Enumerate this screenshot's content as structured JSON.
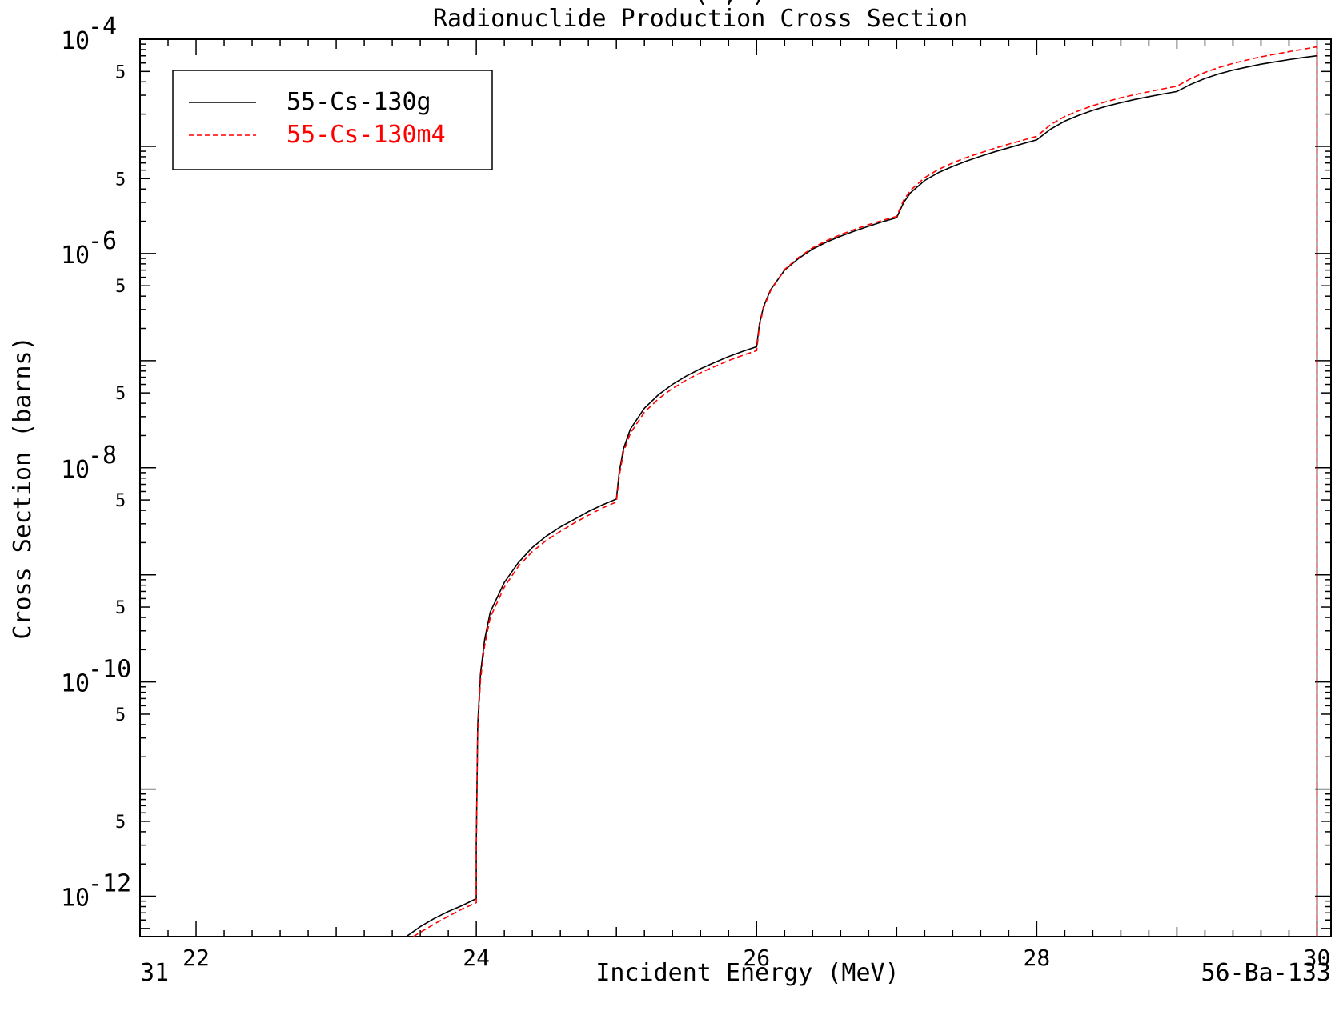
{
  "chart_data": {
    "type": "line",
    "title": "Radionuclide Production Cross Section",
    "title_top_fragment": "(   ,   )",
    "xlabel": "Incident Energy (MeV)",
    "ylabel": "Cross Section (barns)",
    "xlim": [
      21.6,
      30.1
    ],
    "ylim": [
      4.2e-13,
      0.0001
    ],
    "yscale": "log",
    "x_ticks": [
      {
        "value": 22,
        "label": "22"
      },
      {
        "value": 24,
        "label": "24"
      },
      {
        "value": 26,
        "label": "26"
      },
      {
        "value": 28,
        "label": "28"
      },
      {
        "value": 30,
        "label": "30"
      }
    ],
    "y_major_labels": [
      {
        "exp": -4,
        "base": "10",
        "sup": "-4"
      },
      {
        "exp": -6,
        "base": "10",
        "sup": "-6"
      },
      {
        "exp": -8,
        "base": "10",
        "sup": "-8"
      },
      {
        "exp": -10,
        "base": "10",
        "sup": "-10"
      },
      {
        "exp": -12,
        "base": "10",
        "sup": "-12"
      }
    ],
    "y_minor_labels": [
      {
        "value": 5e-05,
        "label": "5"
      },
      {
        "value": 5e-06,
        "label": "5"
      },
      {
        "value": 5e-07,
        "label": "5"
      },
      {
        "value": 5e-08,
        "label": "5"
      },
      {
        "value": 5e-09,
        "label": "5"
      },
      {
        "value": 5e-10,
        "label": "5"
      },
      {
        "value": 5e-11,
        "label": "5"
      },
      {
        "value": 5e-12,
        "label": "5"
      }
    ],
    "legend_position": "top-left",
    "series": [
      {
        "name": "55-Cs-130g",
        "color": "#000000",
        "dash": "solid",
        "points": [
          [
            23.5,
            4.2e-13
          ],
          [
            23.6,
            5.2e-13
          ],
          [
            23.7,
            6.2e-13
          ],
          [
            23.8,
            7.2e-13
          ],
          [
            23.9,
            8.2e-13
          ],
          [
            24.0,
            9.5e-13
          ],
          [
            24.0,
            3e-12
          ],
          [
            24.01,
            4e-11
          ],
          [
            24.03,
            1.2e-10
          ],
          [
            24.06,
            2.5e-10
          ],
          [
            24.1,
            4.5e-10
          ],
          [
            24.2,
            8.5e-10
          ],
          [
            24.3,
            1.3e-09
          ],
          [
            24.4,
            1.8e-09
          ],
          [
            24.5,
            2.3e-09
          ],
          [
            24.6,
            2.8e-09
          ],
          [
            24.7,
            3.3e-09
          ],
          [
            24.8,
            3.9e-09
          ],
          [
            24.9,
            4.5e-09
          ],
          [
            25.0,
            5.1e-09
          ],
          [
            25.02,
            9e-09
          ],
          [
            25.05,
            1.5e-08
          ],
          [
            25.1,
            2.3e-08
          ],
          [
            25.2,
            3.6e-08
          ],
          [
            25.3,
            4.8e-08
          ],
          [
            25.4,
            6e-08
          ],
          [
            25.5,
            7.2e-08
          ],
          [
            25.6,
            8.4e-08
          ],
          [
            25.7,
            9.6e-08
          ],
          [
            25.8,
            1.09e-07
          ],
          [
            25.9,
            1.22e-07
          ],
          [
            26.0,
            1.35e-07
          ],
          [
            26.02,
            2.2e-07
          ],
          [
            26.05,
            3.2e-07
          ],
          [
            26.1,
            4.6e-07
          ],
          [
            26.2,
            7e-07
          ],
          [
            26.3,
            9e-07
          ],
          [
            26.4,
            1.1e-06
          ],
          [
            26.5,
            1.28e-06
          ],
          [
            26.6,
            1.45e-06
          ],
          [
            26.7,
            1.62e-06
          ],
          [
            26.8,
            1.8e-06
          ],
          [
            26.9,
            1.98e-06
          ],
          [
            27.0,
            2.16e-06
          ],
          [
            27.05,
            3e-06
          ],
          [
            27.1,
            3.7e-06
          ],
          [
            27.2,
            4.8e-06
          ],
          [
            27.3,
            5.7e-06
          ],
          [
            27.4,
            6.5e-06
          ],
          [
            27.5,
            7.3e-06
          ],
          [
            27.6,
            8.1e-06
          ],
          [
            27.7,
            8.9e-06
          ],
          [
            27.8,
            9.7e-06
          ],
          [
            27.9,
            1.06e-05
          ],
          [
            28.0,
            1.15e-05
          ],
          [
            28.1,
            1.45e-05
          ],
          [
            28.2,
            1.72e-05
          ],
          [
            28.3,
            1.95e-05
          ],
          [
            28.4,
            2.17e-05
          ],
          [
            28.5,
            2.37e-05
          ],
          [
            28.6,
            2.56e-05
          ],
          [
            28.7,
            2.74e-05
          ],
          [
            28.8,
            2.91e-05
          ],
          [
            28.9,
            3.08e-05
          ],
          [
            29.0,
            3.25e-05
          ],
          [
            29.1,
            3.8e-05
          ],
          [
            29.2,
            4.3e-05
          ],
          [
            29.3,
            4.75e-05
          ],
          [
            29.4,
            5.15e-05
          ],
          [
            29.5,
            5.5e-05
          ],
          [
            29.6,
            5.85e-05
          ],
          [
            29.7,
            6.15e-05
          ],
          [
            29.8,
            6.45e-05
          ],
          [
            29.9,
            6.75e-05
          ],
          [
            30.0,
            7e-05
          ],
          [
            30.0,
            4.2e-13
          ]
        ]
      },
      {
        "name": "55-Cs-130m4",
        "color": "#ff0000",
        "dash": "dashed",
        "points": [
          [
            23.55,
            4.2e-13
          ],
          [
            23.6,
            4.6e-13
          ],
          [
            23.7,
            5.5e-13
          ],
          [
            23.8,
            6.5e-13
          ],
          [
            23.9,
            7.6e-13
          ],
          [
            24.0,
            8.7e-13
          ],
          [
            24.0,
            2.8e-12
          ],
          [
            24.01,
            3.5e-11
          ],
          [
            24.03,
            1.05e-10
          ],
          [
            24.06,
            2.2e-10
          ],
          [
            24.1,
            4e-10
          ],
          [
            24.2,
            7.7e-10
          ],
          [
            24.3,
            1.2e-09
          ],
          [
            24.4,
            1.65e-09
          ],
          [
            24.5,
            2.1e-09
          ],
          [
            24.6,
            2.55e-09
          ],
          [
            24.7,
            3.05e-09
          ],
          [
            24.8,
            3.6e-09
          ],
          [
            24.9,
            4.2e-09
          ],
          [
            25.0,
            4.8e-09
          ],
          [
            25.02,
            8.3e-09
          ],
          [
            25.05,
            1.4e-08
          ],
          [
            25.1,
            2.1e-08
          ],
          [
            25.2,
            3.3e-08
          ],
          [
            25.3,
            4.4e-08
          ],
          [
            25.4,
            5.5e-08
          ],
          [
            25.5,
            6.6e-08
          ],
          [
            25.6,
            7.7e-08
          ],
          [
            25.7,
            8.8e-08
          ],
          [
            25.8,
            1e-07
          ],
          [
            25.9,
            1.12e-07
          ],
          [
            26.0,
            1.24e-07
          ],
          [
            26.02,
            2.1e-07
          ],
          [
            26.05,
            3.1e-07
          ],
          [
            26.1,
            4.5e-07
          ],
          [
            26.2,
            7.1e-07
          ],
          [
            26.3,
            9.2e-07
          ],
          [
            26.4,
            1.13e-06
          ],
          [
            26.5,
            1.32e-06
          ],
          [
            26.6,
            1.5e-06
          ],
          [
            26.7,
            1.68e-06
          ],
          [
            26.8,
            1.86e-06
          ],
          [
            26.9,
            2.04e-06
          ],
          [
            27.0,
            2.22e-06
          ],
          [
            27.05,
            3.15e-06
          ],
          [
            27.1,
            3.9e-06
          ],
          [
            27.2,
            5.1e-06
          ],
          [
            27.3,
            6.1e-06
          ],
          [
            27.4,
            7e-06
          ],
          [
            27.5,
            7.9e-06
          ],
          [
            27.6,
            8.7e-06
          ],
          [
            27.7,
            9.6e-06
          ],
          [
            27.8,
            1.05e-05
          ],
          [
            27.9,
            1.14e-05
          ],
          [
            28.0,
            1.24e-05
          ],
          [
            28.1,
            1.6e-05
          ],
          [
            28.2,
            1.9e-05
          ],
          [
            28.3,
            2.15e-05
          ],
          [
            28.4,
            2.4e-05
          ],
          [
            28.5,
            2.62e-05
          ],
          [
            28.6,
            2.84e-05
          ],
          [
            28.7,
            3.04e-05
          ],
          [
            28.8,
            3.24e-05
          ],
          [
            28.9,
            3.44e-05
          ],
          [
            29.0,
            3.64e-05
          ],
          [
            29.1,
            4.3e-05
          ],
          [
            29.2,
            4.9e-05
          ],
          [
            29.3,
            5.45e-05
          ],
          [
            29.4,
            5.95e-05
          ],
          [
            29.5,
            6.4e-05
          ],
          [
            29.6,
            6.85e-05
          ],
          [
            29.7,
            7.25e-05
          ],
          [
            29.8,
            7.65e-05
          ],
          [
            29.9,
            8.05e-05
          ],
          [
            30.0,
            8.5e-05
          ],
          [
            30.0,
            4.2e-13
          ]
        ]
      }
    ]
  },
  "footer": {
    "left": "31",
    "right": "56-Ba-133"
  },
  "legend": {
    "items": [
      {
        "label": "55-Cs-130g",
        "color": "#000000"
      },
      {
        "label": "55-Cs-130m4",
        "color": "#ff0000"
      }
    ]
  }
}
